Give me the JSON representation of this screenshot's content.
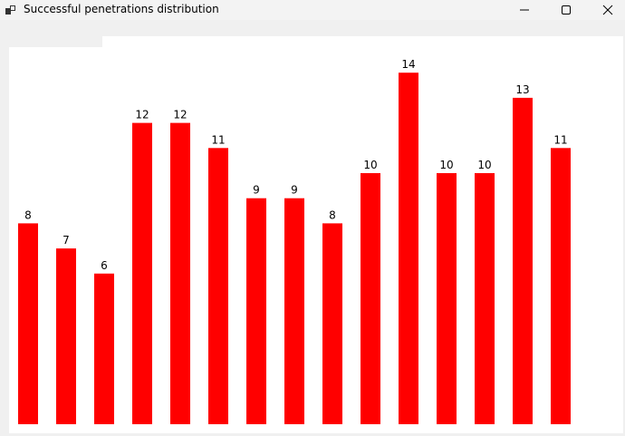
{
  "window": {
    "title": "Successful penetrations distribution",
    "app_icon": "app-icon",
    "minimize_icon": "minimize-icon",
    "maximize_icon": "maximize-icon",
    "close_icon": "close-icon"
  },
  "chart_data": {
    "type": "bar",
    "categories": [
      "",
      "",
      "",
      "",
      "",
      "",
      "",
      "",
      "",
      "",
      "",
      "",
      "",
      "",
      ""
    ],
    "values": [
      8,
      7,
      6,
      12,
      12,
      11,
      9,
      9,
      8,
      10,
      14,
      10,
      10,
      13,
      11
    ],
    "title": "",
    "xlabel": "",
    "ylabel": "",
    "ylim": [
      0,
      14
    ],
    "grid": false,
    "legend": "none",
    "bar_color": "#ff0000",
    "data_labels": true
  }
}
